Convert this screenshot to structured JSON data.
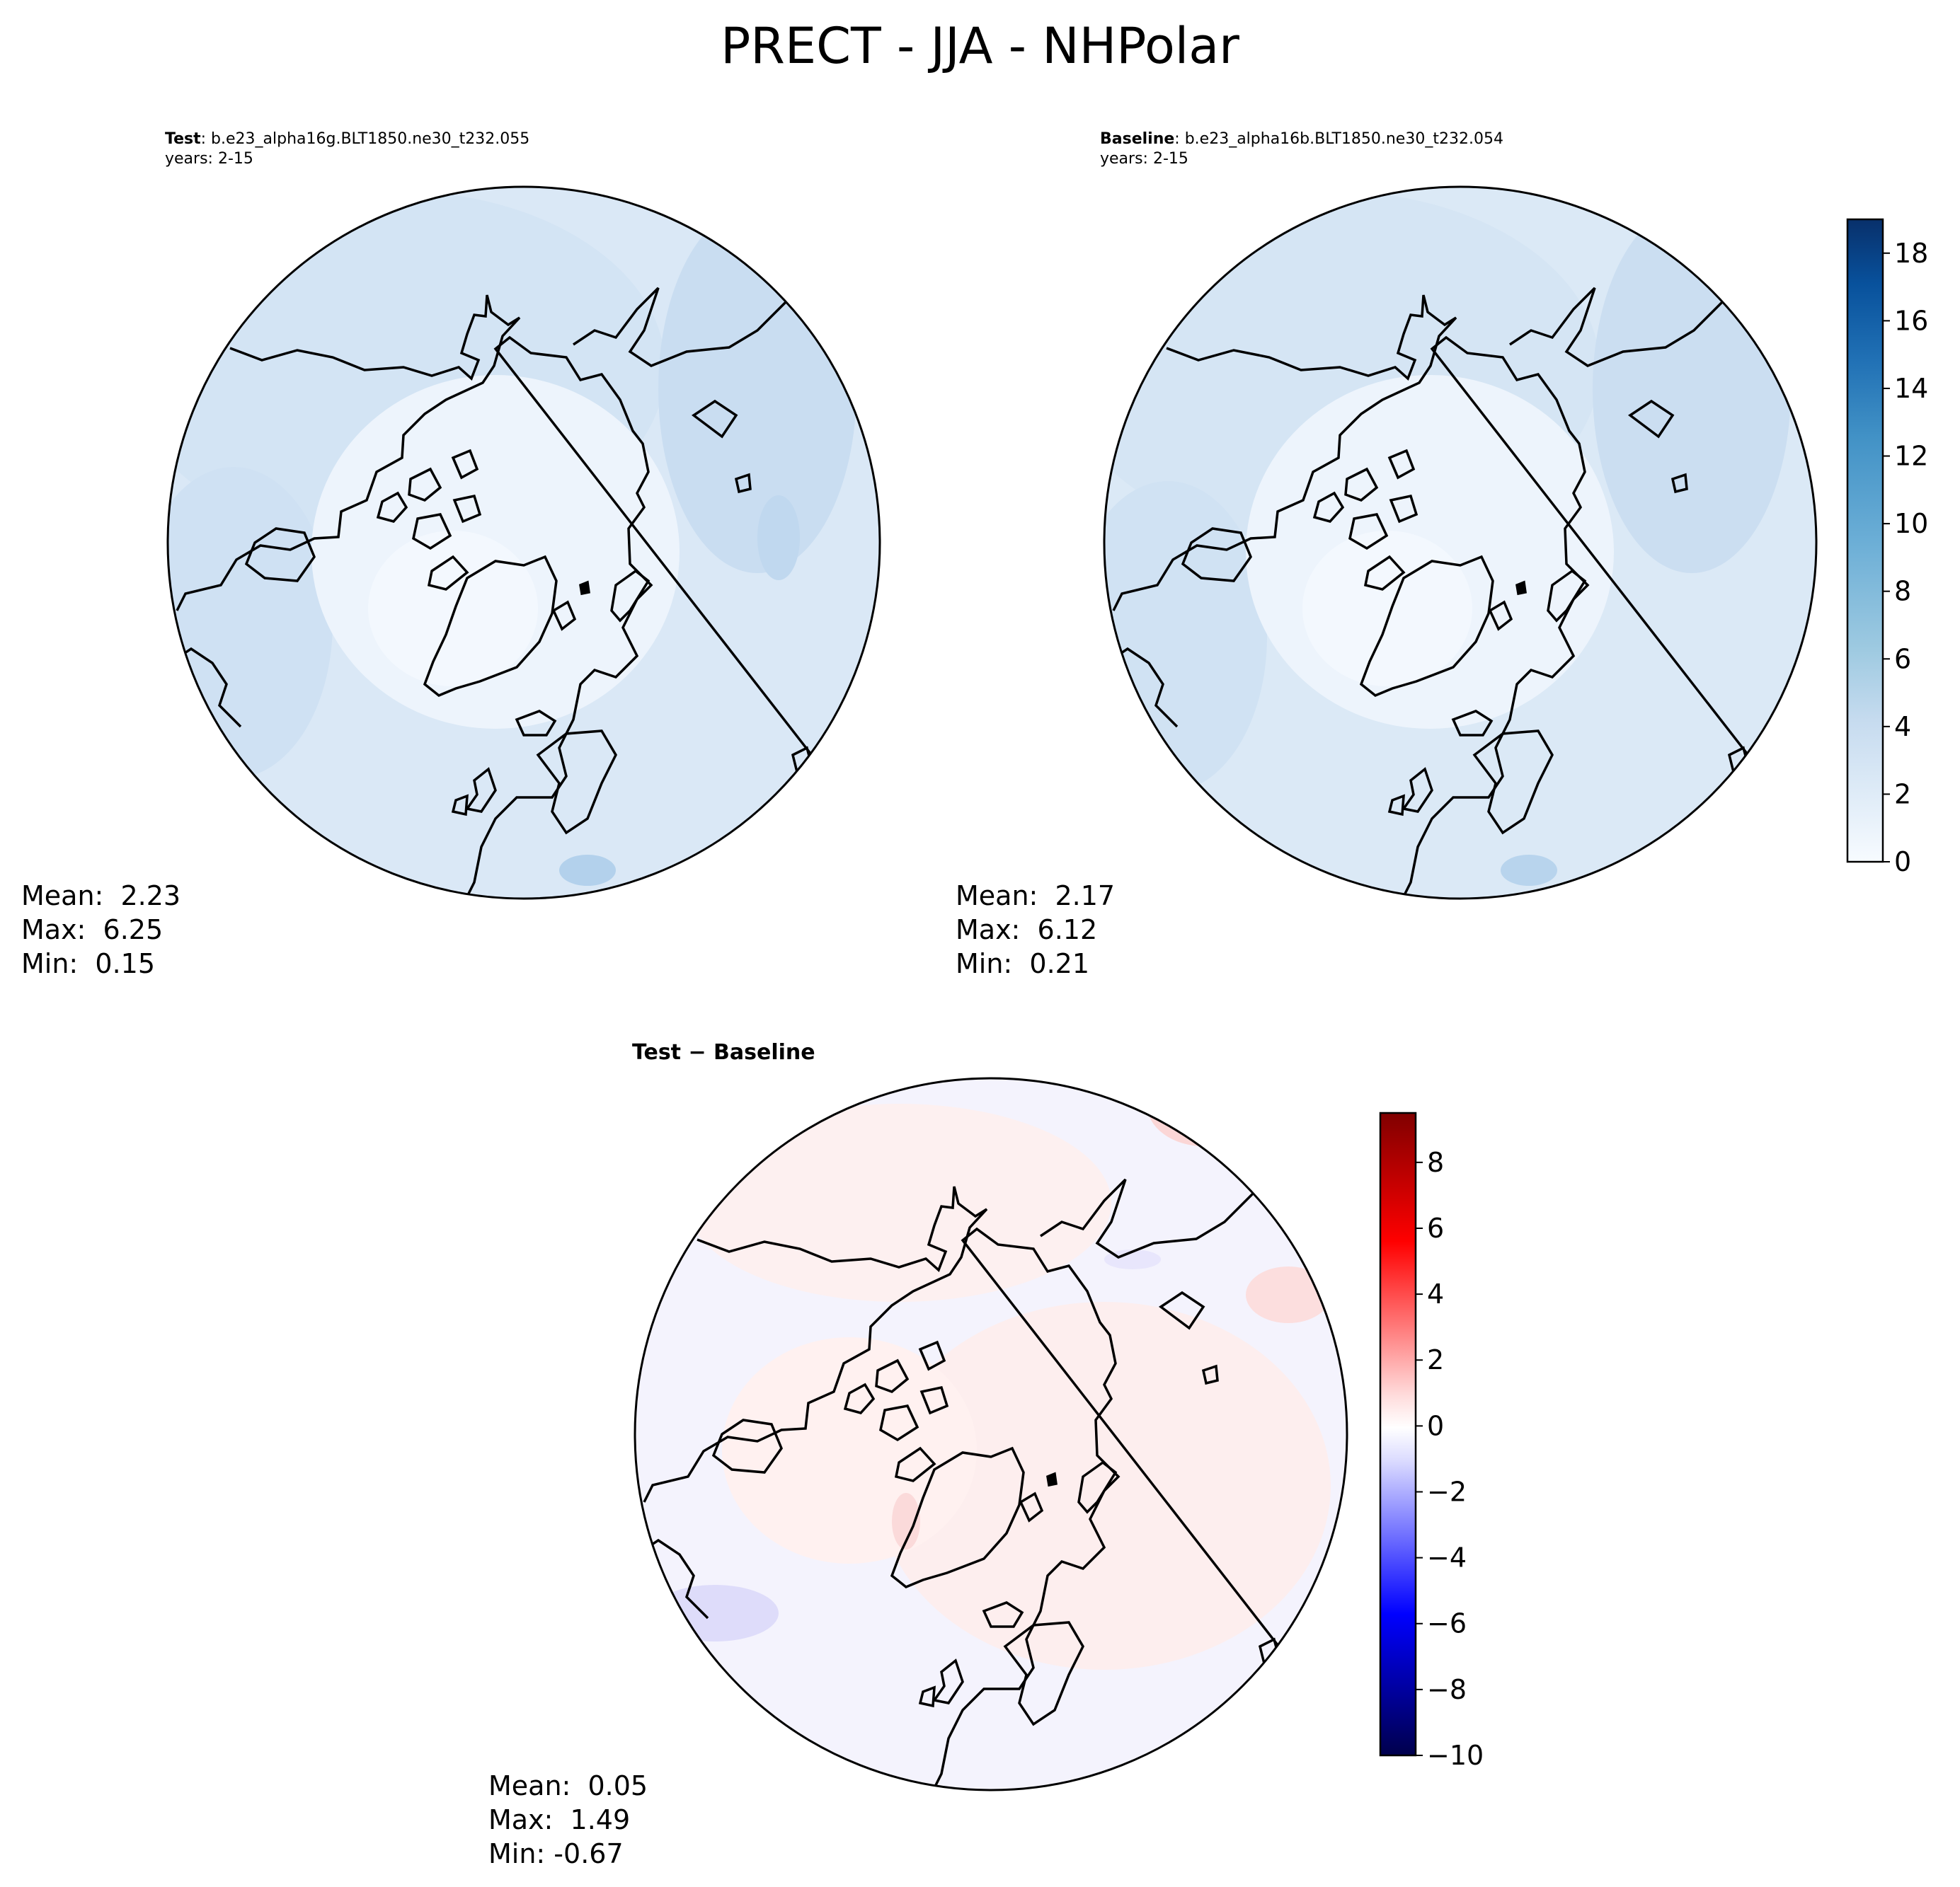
{
  "title": "PRECT - JJA - NHPolar",
  "panels": [
    {
      "id": "test",
      "label": "Test",
      "case": ": b.e23_alpha16g.BLT1850.ne30_t232.055",
      "years": "years: 2-15",
      "stats": {
        "mean": "Mean:  2.23",
        "max": "Max:  6.25",
        "min": "Min:  0.15"
      }
    },
    {
      "id": "baseline",
      "label": "Baseline",
      "case": ": b.e23_alpha16b.BLT1850.ne30_t232.054",
      "years": "years: 2-15",
      "stats": {
        "mean": "Mean:  2.17",
        "max": "Max:  6.12",
        "min": "Min:  0.21"
      }
    },
    {
      "id": "diff",
      "label": "Test − Baseline",
      "stats": {
        "mean": "Mean:  0.05",
        "max": "Max:  1.49",
        "min": "Min: -0.67"
      }
    }
  ],
  "colorbars": {
    "precip": {
      "ticks": [
        "0",
        "2",
        "4",
        "6",
        "8",
        "10",
        "12",
        "14",
        "16",
        "18"
      ],
      "range": [
        0,
        19
      ],
      "colors": [
        "#f7fbff",
        "#deebf7",
        "#c6dbef",
        "#9ecae1",
        "#6baed6",
        "#4292c6",
        "#2171b5",
        "#08519c",
        "#08306b"
      ]
    },
    "diff": {
      "ticks": [
        "−10",
        "−8",
        "−6",
        "−4",
        "−2",
        "0",
        "2",
        "4",
        "6",
        "8"
      ],
      "range": [
        -10,
        9.5
      ],
      "colors": [
        "#00004c",
        "#0000ff",
        "#dcdcff",
        "#ffffff",
        "#ffdcdc",
        "#ff0000",
        "#800000"
      ]
    }
  },
  "map_colors": {
    "ocean_test": "#d6e6f5",
    "land_test": "#ecf4fc",
    "ocean_diff": "#f4f2fd",
    "land_diff": "#fff0ee"
  }
}
